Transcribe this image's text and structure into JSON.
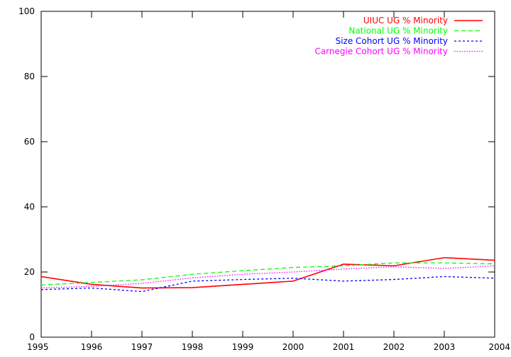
{
  "chart_data": {
    "type": "line",
    "title": "",
    "xlabel": "",
    "ylabel": "",
    "x": [
      1995,
      1996,
      1997,
      1998,
      1999,
      2000,
      2001,
      2002,
      2003,
      2004
    ],
    "xlim": [
      1995,
      2004
    ],
    "ylim": [
      0,
      100
    ],
    "xticks": [
      1995,
      1996,
      1997,
      1998,
      1999,
      2000,
      2001,
      2002,
      2003,
      2004
    ],
    "yticks": [
      0,
      20,
      40,
      60,
      80,
      100
    ],
    "grid": false,
    "legend_position": "top-right",
    "series": [
      {
        "name": "UIUC UG % Minority",
        "color": "#ff0000",
        "dash": "solid",
        "values": [
          18.6,
          16.2,
          15.1,
          15.2,
          16.2,
          17.2,
          22.4,
          21.9,
          24.4,
          23.6
        ]
      },
      {
        "name": "National UG % Minority",
        "color": "#00ff00",
        "dash": "dashed",
        "values": [
          16.0,
          16.8,
          17.6,
          19.3,
          20.4,
          21.4,
          21.9,
          22.8,
          22.8,
          22.5
        ]
      },
      {
        "name": "Size Cohort UG % Minority",
        "color": "#0000ff",
        "dash": "dotted-short",
        "values": [
          14.6,
          15.1,
          14.0,
          17.2,
          17.7,
          18.1,
          17.2,
          17.7,
          18.6,
          18.1
        ]
      },
      {
        "name": "Carnegie Cohort UG % Minority",
        "color": "#ff00ff",
        "dash": "dotted",
        "values": [
          15.1,
          15.6,
          16.5,
          18.2,
          19.3,
          20.0,
          20.9,
          21.6,
          21.1,
          21.9
        ]
      }
    ]
  }
}
